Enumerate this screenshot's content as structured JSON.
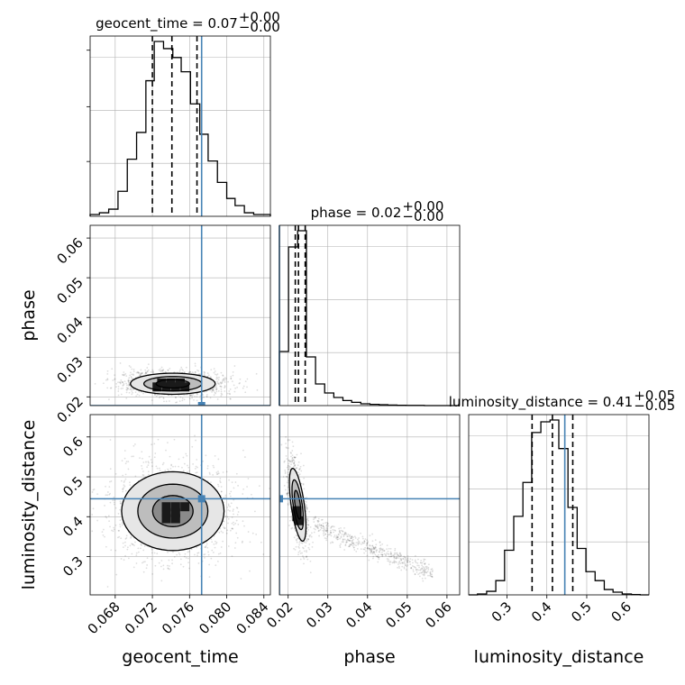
{
  "chart_data": {
    "type": "corner",
    "parameters": [
      "geocent_time",
      "phase",
      "luminosity_distance"
    ],
    "axis_labels": {
      "x": [
        "geocent_time",
        "phase",
        "luminosity_distance"
      ],
      "y": [
        "phase",
        "luminosity_distance"
      ]
    },
    "ranges": {
      "geocent_time": [
        0.0653,
        0.0847
      ],
      "phase": [
        0.0178,
        0.0632
      ],
      "luminosity_distance": [
        0.204,
        0.656
      ]
    },
    "ticks": {
      "geocent_time": [
        "0.068",
        "0.072",
        "0.076",
        "0.080",
        "0.084"
      ],
      "phase": [
        "0.02",
        "0.03",
        "0.04",
        "0.05",
        "0.06"
      ],
      "luminosity_distance": [
        "0.3",
        "0.4",
        "0.5",
        "0.6"
      ]
    },
    "injection": {
      "geocent_time": 0.0773,
      "phase": 0.0178,
      "luminosity_distance": 0.445
    },
    "summaries": [
      {
        "param": "geocent_time",
        "title_prefix": "geocent_time = 0.07",
        "plus": "+0.00",
        "minus": "−0.00",
        "quantiles": [
          0.072,
          0.0741,
          0.0768
        ]
      },
      {
        "param": "phase",
        "title_prefix": "phase = 0.02",
        "plus": "+0.00",
        "minus": "−0.00",
        "quantiles": [
          0.0218,
          0.0226,
          0.0243
        ]
      },
      {
        "param": "luminosity_distance",
        "title_prefix": "luminosity_distance = 0.41",
        "plus": "+0.05",
        "minus": "−0.05",
        "quantiles": [
          0.363,
          0.414,
          0.465
        ]
      }
    ],
    "histograms": {
      "geocent_time": {
        "edges": [
          0.0653,
          0.0663,
          0.0673,
          0.0683,
          0.0693,
          0.0703,
          0.0713,
          0.0722,
          0.0732,
          0.0742,
          0.0751,
          0.0761,
          0.0771,
          0.078,
          0.079,
          0.08,
          0.0809,
          0.0819,
          0.0829,
          0.0839,
          0.0847
        ],
        "counts": [
          0.01,
          0.02,
          0.04,
          0.14,
          0.32,
          0.47,
          0.76,
          0.98,
          0.94,
          0.89,
          0.81,
          0.63,
          0.46,
          0.31,
          0.19,
          0.1,
          0.06,
          0.02,
          0.01,
          0.01
        ]
      },
      "phase": {
        "edges": [
          0.0178,
          0.0201,
          0.0224,
          0.0246,
          0.0269,
          0.0292,
          0.0315,
          0.0338,
          0.036,
          0.0383,
          0.0406,
          0.0429,
          0.0451,
          0.0474,
          0.0497,
          0.052,
          0.0543,
          0.0565,
          0.0588,
          0.0611,
          0.0632
        ],
        "counts": [
          0.3,
          0.88,
          0.97,
          0.27,
          0.12,
          0.07,
          0.045,
          0.028,
          0.018,
          0.01,
          0.007,
          0.005,
          0.003,
          0.002,
          0.001,
          0.001,
          0.0,
          0.0,
          0.0,
          0.0
        ]
      },
      "luminosity_distance": {
        "edges": [
          0.204,
          0.226,
          0.249,
          0.272,
          0.294,
          0.317,
          0.34,
          0.362,
          0.385,
          0.408,
          0.43,
          0.453,
          0.476,
          0.498,
          0.521,
          0.544,
          0.566,
          0.589,
          0.612,
          0.634,
          0.656
        ],
        "counts": [
          0.0,
          0.005,
          0.02,
          0.08,
          0.25,
          0.44,
          0.63,
          0.91,
          0.97,
          0.98,
          0.82,
          0.49,
          0.26,
          0.13,
          0.08,
          0.03,
          0.015,
          0.005,
          0.002,
          0.0
        ]
      }
    },
    "densities": [
      {
        "x": "geocent_time",
        "y": "phase",
        "mean": [
          0.0742,
          0.0233
        ],
        "sd": [
          0.0024,
          0.0014
        ],
        "corr": 0.0,
        "contours_sigma": [
          0.75,
          1.3,
          1.9
        ],
        "cells": [
          [
            0.0725,
            0.0225
          ],
          [
            0.0735,
            0.0225
          ],
          [
            0.0745,
            0.0225
          ],
          [
            0.0755,
            0.0225
          ],
          [
            0.073,
            0.0235
          ],
          [
            0.074,
            0.0235
          ],
          [
            0.075,
            0.0235
          ]
        ]
      },
      {
        "x": "geocent_time",
        "y": "luminosity_distance",
        "mean": [
          0.0742,
          0.414
        ],
        "sd": [
          0.0029,
          0.052
        ],
        "corr": 0.0,
        "contours_sigma": [
          0.75,
          1.3,
          1.9
        ],
        "cells": [
          [
            0.0735,
            0.41
          ],
          [
            0.0745,
            0.41
          ],
          [
            0.0735,
            0.425
          ],
          [
            0.0745,
            0.425
          ],
          [
            0.0755,
            0.425
          ],
          [
            0.0735,
            0.395
          ],
          [
            0.0745,
            0.395
          ]
        ]
      },
      {
        "x": "phase",
        "y": "luminosity_distance",
        "mean": [
          0.0224,
          0.43
        ],
        "sd": [
          0.0011,
          0.048
        ],
        "corr": -0.6,
        "tail": true,
        "contours_sigma": [
          0.75,
          1.3,
          1.9
        ],
        "cells": [
          [
            0.0222,
            0.4
          ],
          [
            0.0222,
            0.415
          ],
          [
            0.0227,
            0.39
          ]
        ]
      }
    ],
    "grid": true,
    "colors": {
      "hist": "#000000",
      "truth": "#4682b4",
      "samples": "#000000",
      "grid": "#b0b0b0"
    }
  }
}
